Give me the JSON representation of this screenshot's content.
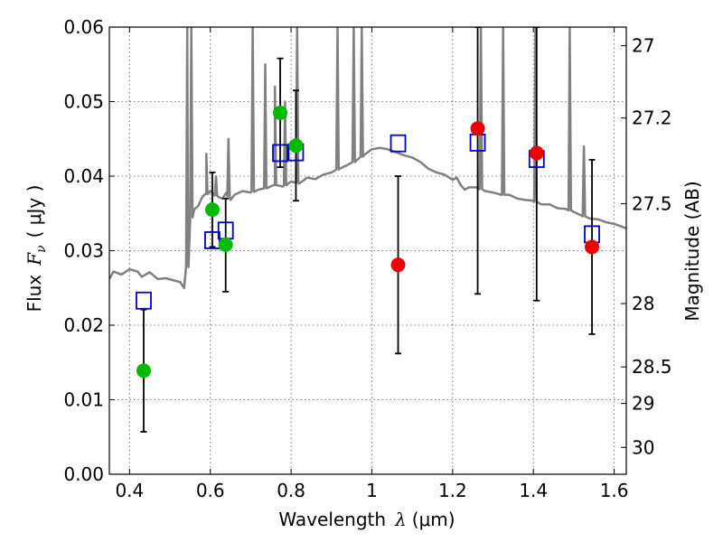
{
  "chart_data": {
    "type": "scatter",
    "title": "",
    "xlabel": {
      "prefix": "Wavelength",
      "symbol": "λ",
      "unit": "(μm)"
    },
    "ylabel": {
      "prefix": "Flux",
      "symbol": "F",
      "subscript": "ν",
      "unit": "( μJy )"
    },
    "y2label": "Magnitude (AB)",
    "xlim": [
      0.35,
      1.63
    ],
    "ylim": [
      0.0,
      0.06
    ],
    "grid": true,
    "x_ticks": [
      0.4,
      0.6,
      0.8,
      1.0,
      1.2,
      1.4,
      1.6
    ],
    "x_tick_labels": [
      "0.4",
      "0.6",
      "0.8",
      "1",
      "1.2",
      "1.4",
      "1.6"
    ],
    "y_ticks": [
      0.0,
      0.01,
      0.02,
      0.03,
      0.04,
      0.05,
      0.06
    ],
    "y_tick_labels": [
      "0.00",
      "0.01",
      "0.02",
      "0.03",
      "0.04",
      "0.05",
      "0.06"
    ],
    "y2_ticks": [
      {
        "label": "27",
        "flux": 0.0575
      },
      {
        "label": "27.2",
        "flux": 0.0478
      },
      {
        "label": "27.5",
        "flux": 0.0363
      },
      {
        "label": "28",
        "flux": 0.0229
      },
      {
        "label": "28.5",
        "flux": 0.0144
      },
      {
        "label": "29",
        "flux": 0.0095
      },
      {
        "label": "30",
        "flux": 0.0036
      }
    ],
    "colors": {
      "model": "#808080",
      "green": "#00bb00",
      "red": "#ee0000",
      "square": "#0000cc",
      "errorbar": "#000000"
    },
    "series": [
      {
        "kind": "model-spectrum",
        "points": [
          [
            0.35,
            0.0262
          ],
          [
            0.36,
            0.0272
          ],
          [
            0.38,
            0.0268
          ],
          [
            0.4,
            0.0275
          ],
          [
            0.42,
            0.0272
          ],
          [
            0.43,
            0.0265
          ],
          [
            0.45,
            0.0271
          ],
          [
            0.47,
            0.0262
          ],
          [
            0.49,
            0.0263
          ],
          [
            0.51,
            0.026
          ],
          [
            0.525,
            0.0258
          ],
          [
            0.535,
            0.025
          ],
          [
            0.545,
            0.0285
          ],
          [
            0.55,
            0.034
          ],
          [
            0.56,
            0.0355
          ],
          [
            0.57,
            0.036
          ],
          [
            0.58,
            0.0372
          ],
          [
            0.59,
            0.0376
          ],
          [
            0.6,
            0.038
          ],
          [
            0.61,
            0.0375
          ],
          [
            0.62,
            0.0372
          ],
          [
            0.63,
            0.037
          ],
          [
            0.64,
            0.0378
          ],
          [
            0.65,
            0.0368
          ],
          [
            0.66,
            0.0375
          ],
          [
            0.68,
            0.038
          ],
          [
            0.7,
            0.0378
          ],
          [
            0.72,
            0.0382
          ],
          [
            0.74,
            0.0384
          ],
          [
            0.76,
            0.0388
          ],
          [
            0.78,
            0.0386
          ],
          [
            0.8,
            0.0393
          ],
          [
            0.82,
            0.039
          ],
          [
            0.84,
            0.0398
          ],
          [
            0.86,
            0.0396
          ],
          [
            0.88,
            0.0402
          ],
          [
            0.9,
            0.0405
          ],
          [
            0.92,
            0.041
          ],
          [
            0.94,
            0.0415
          ],
          [
            0.96,
            0.042
          ],
          [
            0.98,
            0.0428
          ],
          [
            1.0,
            0.0436
          ],
          [
            1.02,
            0.0438
          ],
          [
            1.04,
            0.0436
          ],
          [
            1.06,
            0.0432
          ],
          [
            1.08,
            0.0428
          ],
          [
            1.1,
            0.0425
          ],
          [
            1.12,
            0.0419
          ],
          [
            1.14,
            0.041
          ],
          [
            1.16,
            0.0405
          ],
          [
            1.18,
            0.0402
          ],
          [
            1.2,
            0.0395
          ],
          [
            1.21,
            0.0398
          ],
          [
            1.22,
            0.0388
          ],
          [
            1.23,
            0.0382
          ],
          [
            1.24,
            0.0385
          ],
          [
            1.26,
            0.0385
          ],
          [
            1.28,
            0.038
          ],
          [
            1.3,
            0.0378
          ],
          [
            1.32,
            0.0375
          ],
          [
            1.34,
            0.0375
          ],
          [
            1.36,
            0.037
          ],
          [
            1.38,
            0.0368
          ],
          [
            1.4,
            0.0367
          ],
          [
            1.42,
            0.0362
          ],
          [
            1.44,
            0.0362
          ],
          [
            1.46,
            0.0357
          ],
          [
            1.48,
            0.0356
          ],
          [
            1.5,
            0.0352
          ],
          [
            1.52,
            0.0347
          ],
          [
            1.54,
            0.0343
          ],
          [
            1.56,
            0.0342
          ],
          [
            1.58,
            0.0338
          ],
          [
            1.6,
            0.0336
          ],
          [
            1.62,
            0.0332
          ],
          [
            1.63,
            0.033
          ]
        ],
        "spikes": [
          {
            "x": 0.543,
            "peak": 0.06
          },
          {
            "x": 0.553,
            "peak": 0.06
          },
          {
            "x": 0.59,
            "peak": 0.043
          },
          {
            "x": 0.614,
            "peak": 0.04
          },
          {
            "x": 0.645,
            "peak": 0.045
          },
          {
            "x": 0.705,
            "peak": 0.06
          },
          {
            "x": 0.736,
            "peak": 0.055
          },
          {
            "x": 0.76,
            "peak": 0.052
          },
          {
            "x": 0.785,
            "peak": 0.05
          },
          {
            "x": 0.815,
            "peak": 0.06
          },
          {
            "x": 0.915,
            "peak": 0.06
          },
          {
            "x": 0.955,
            "peak": 0.06
          },
          {
            "x": 0.975,
            "peak": 0.06
          },
          {
            "x": 1.27,
            "peak": 0.06
          },
          {
            "x": 1.325,
            "peak": 0.06
          },
          {
            "x": 1.405,
            "peak": 0.06
          },
          {
            "x": 1.49,
            "peak": 0.06
          },
          {
            "x": 1.525,
            "peak": 0.044
          }
        ]
      },
      {
        "kind": "model-squares",
        "points": [
          [
            0.435,
            0.0233
          ],
          [
            0.605,
            0.0314
          ],
          [
            0.638,
            0.0327
          ],
          [
            0.773,
            0.0431
          ],
          [
            0.812,
            0.0432
          ],
          [
            1.065,
            0.0444
          ],
          [
            1.262,
            0.0445
          ],
          [
            1.408,
            0.0423
          ],
          [
            1.545,
            0.0322
          ]
        ]
      },
      {
        "kind": "observed-green",
        "points": [
          {
            "x": 0.435,
            "y": 0.0139,
            "lo": 0.0057,
            "hi": 0.0221
          },
          {
            "x": 0.605,
            "y": 0.0355,
            "lo": 0.0305,
            "hi": 0.0405
          },
          {
            "x": 0.638,
            "y": 0.0308,
            "lo": 0.0245,
            "hi": 0.037
          },
          {
            "x": 0.773,
            "y": 0.0485,
            "lo": 0.0412,
            "hi": 0.0558
          },
          {
            "x": 0.812,
            "y": 0.0441,
            "lo": 0.0367,
            "hi": 0.0515
          }
        ]
      },
      {
        "kind": "observed-red",
        "points": [
          {
            "x": 1.065,
            "y": 0.0281,
            "lo": 0.0162,
            "hi": 0.04
          },
          {
            "x": 1.262,
            "y": 0.0464,
            "lo": 0.0242,
            "hi": 0.06
          },
          {
            "x": 1.408,
            "y": 0.0431,
            "lo": 0.0233,
            "hi": 0.06
          },
          {
            "x": 1.545,
            "y": 0.0305,
            "lo": 0.0188,
            "hi": 0.0422
          }
        ]
      }
    ]
  }
}
